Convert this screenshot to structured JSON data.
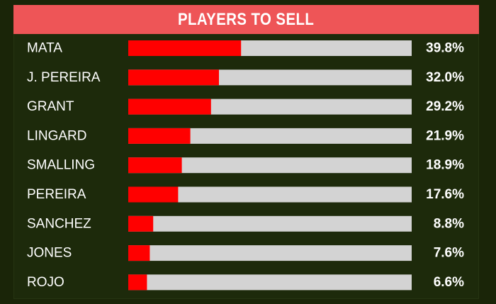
{
  "header": {
    "title": "PLAYERS TO SELL"
  },
  "colors": {
    "background": "#1a2508",
    "header": "#ee5557",
    "bar_fill": "#ff0000",
    "bar_track": "#d3d3d3",
    "text": "#ffffff"
  },
  "chart_data": {
    "type": "bar",
    "orientation": "horizontal",
    "title": "PLAYERS TO SELL",
    "xlim": [
      0,
      100
    ],
    "grid": false,
    "legend": "none",
    "categories": [
      "MATA",
      "J. PEREIRA",
      "GRANT",
      "LINGARD",
      "SMALLING",
      "PEREIRA",
      "SANCHEZ",
      "JONES",
      "ROJO"
    ],
    "values": [
      39.8,
      32.0,
      29.2,
      21.9,
      18.9,
      17.6,
      8.8,
      7.6,
      6.6
    ],
    "value_labels": [
      "39.8%",
      "32.0%",
      "29.2%",
      "21.9%",
      "18.9%",
      "17.6%",
      "8.8%",
      "7.6%",
      "6.6%"
    ]
  }
}
